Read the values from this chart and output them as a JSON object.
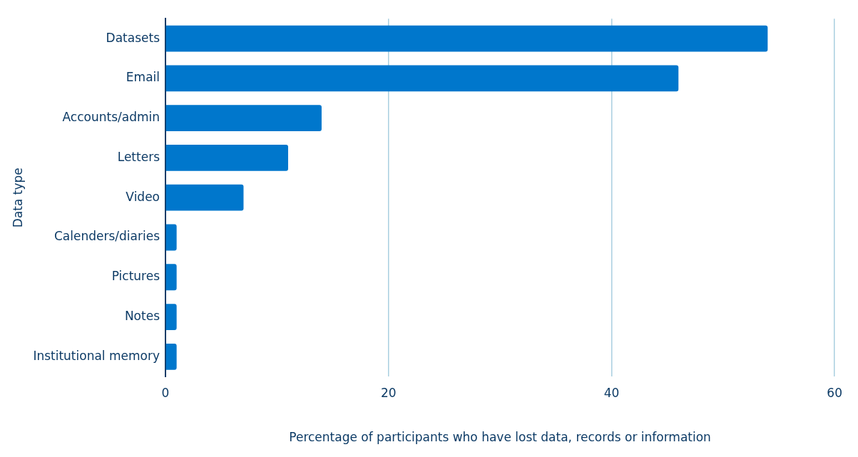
{
  "chart_data": {
    "type": "bar",
    "orientation": "horizontal",
    "xlabel": "Percentage of participants who have lost data, records or information",
    "ylabel": "Data type",
    "categories": [
      "Datasets",
      "Email",
      "Accounts/admin",
      "Letters",
      "Video",
      "Calenders/diaries",
      "Pictures",
      "Notes",
      "Institutional memory"
    ],
    "values": [
      54,
      46,
      14,
      11,
      7,
      1,
      1,
      1,
      1
    ],
    "color": "#0077cc",
    "xlim": [
      0,
      60
    ],
    "xticks": [
      0,
      20,
      40,
      60
    ],
    "grid": "x",
    "legend": false
  }
}
